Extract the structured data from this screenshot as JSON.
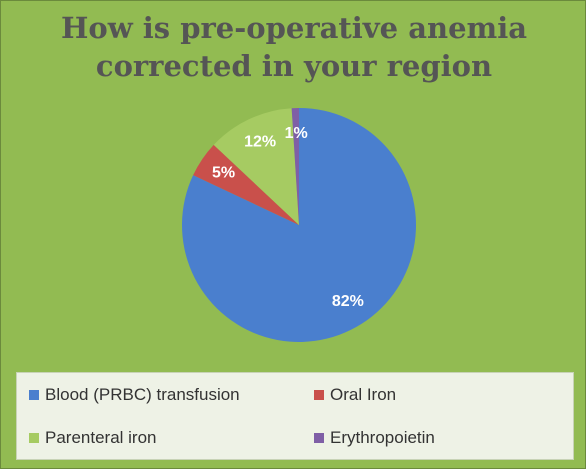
{
  "chart_data": {
    "type": "pie",
    "title": "How is pre-operative anemia corrected in your region",
    "categories": [
      "Blood (PRBC) transfusion",
      "Oral Iron",
      "Parenteral iron",
      "Erythropoietin"
    ],
    "values": [
      82,
      5,
      12,
      1
    ],
    "colors": [
      "#4a7fce",
      "#c9504b",
      "#a6cb62",
      "#7f5fa6"
    ]
  }
}
